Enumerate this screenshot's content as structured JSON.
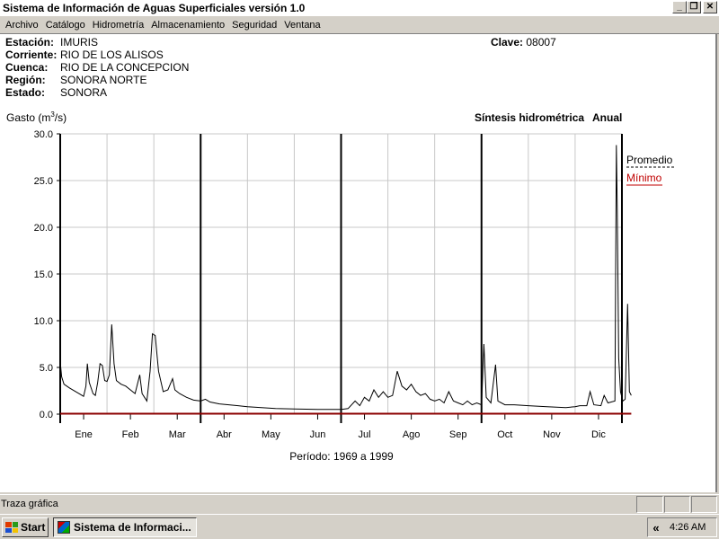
{
  "window": {
    "title": "Sistema de Información de Aguas Superficiales  versión 1.0"
  },
  "menu": [
    "Archivo",
    "Catálogo",
    "Hidrometría",
    "Almacenamiento",
    "Seguridad",
    "Ventana"
  ],
  "station": {
    "rows": [
      {
        "label": "Estación:",
        "value": "IMURIS"
      },
      {
        "label": "Corriente:",
        "value": "RIO DE LOS ALISOS"
      },
      {
        "label": "Cuenca:",
        "value": "RIO DE LA CONCEPCION"
      },
      {
        "label": "Región:",
        "value": "SONORA NORTE"
      },
      {
        "label": "Estado:",
        "value": "SONORA"
      }
    ],
    "clave_label": "Clave:",
    "clave_value": "08007"
  },
  "chart_data": {
    "type": "line",
    "title": "Síntesis hidrométrica",
    "subtitle": "Anual",
    "ylabel_prefix": "Gasto (m",
    "ylabel_sup": "3",
    "ylabel_suffix": "/s)",
    "ylim": [
      0,
      30
    ],
    "yticks": [
      "0.0",
      "5.0",
      "10.0",
      "15.0",
      "20.0",
      "25.0",
      "30.0"
    ],
    "categories": [
      "Ene",
      "Feb",
      "Mar",
      "Abr",
      "May",
      "Jun",
      "Jul",
      "Ago",
      "Sep",
      "Oct",
      "Nov",
      "Dic"
    ],
    "grid": true,
    "legend_position": "right",
    "period": "Período:  1969 a 1999",
    "series": [
      {
        "name": "Promedio",
        "style": "dashed",
        "color": "#000000",
        "points": [
          [
            0.0,
            5.6
          ],
          [
            0.03,
            4.0
          ],
          [
            0.08,
            3.2
          ],
          [
            0.2,
            2.8
          ],
          [
            0.4,
            2.2
          ],
          [
            0.5,
            1.9
          ],
          [
            0.55,
            3.0
          ],
          [
            0.58,
            5.4
          ],
          [
            0.62,
            3.4
          ],
          [
            0.7,
            2.2
          ],
          [
            0.75,
            2.0
          ],
          [
            0.8,
            3.4
          ],
          [
            0.85,
            5.4
          ],
          [
            0.9,
            5.2
          ],
          [
            0.95,
            3.6
          ],
          [
            1.0,
            3.5
          ],
          [
            1.05,
            4.2
          ],
          [
            1.1,
            9.6
          ],
          [
            1.15,
            5.4
          ],
          [
            1.2,
            3.6
          ],
          [
            1.3,
            3.2
          ],
          [
            1.4,
            3.0
          ],
          [
            1.5,
            2.6
          ],
          [
            1.6,
            2.2
          ],
          [
            1.7,
            4.2
          ],
          [
            1.75,
            2.2
          ],
          [
            1.8,
            1.8
          ],
          [
            1.85,
            1.4
          ],
          [
            1.92,
            4.6
          ],
          [
            1.97,
            8.6
          ],
          [
            2.03,
            8.4
          ],
          [
            2.1,
            4.6
          ],
          [
            2.2,
            2.4
          ],
          [
            2.3,
            2.6
          ],
          [
            2.4,
            3.8
          ],
          [
            2.45,
            2.6
          ],
          [
            2.55,
            2.2
          ],
          [
            2.7,
            1.8
          ],
          [
            2.85,
            1.5
          ],
          [
            3.0,
            1.4
          ],
          [
            3.1,
            1.6
          ],
          [
            3.2,
            1.3
          ],
          [
            3.4,
            1.1
          ],
          [
            3.6,
            1.0
          ],
          [
            3.8,
            0.9
          ],
          [
            4.0,
            0.8
          ],
          [
            4.3,
            0.7
          ],
          [
            4.6,
            0.6
          ],
          [
            5.0,
            0.55
          ],
          [
            5.5,
            0.5
          ],
          [
            6.0,
            0.5
          ],
          [
            6.15,
            0.6
          ],
          [
            6.3,
            1.4
          ],
          [
            6.4,
            0.9
          ],
          [
            6.5,
            1.8
          ],
          [
            6.6,
            1.4
          ],
          [
            6.7,
            2.6
          ],
          [
            6.8,
            1.8
          ],
          [
            6.9,
            2.4
          ],
          [
            7.0,
            1.8
          ],
          [
            7.1,
            2.0
          ],
          [
            7.2,
            4.6
          ],
          [
            7.3,
            3.0
          ],
          [
            7.4,
            2.6
          ],
          [
            7.5,
            3.2
          ],
          [
            7.6,
            2.4
          ],
          [
            7.7,
            2.0
          ],
          [
            7.8,
            2.2
          ],
          [
            7.9,
            1.6
          ],
          [
            8.0,
            1.4
          ],
          [
            8.1,
            1.6
          ],
          [
            8.2,
            1.2
          ],
          [
            8.3,
            2.4
          ],
          [
            8.4,
            1.4
          ],
          [
            8.5,
            1.2
          ],
          [
            8.6,
            1.0
          ],
          [
            8.7,
            1.4
          ],
          [
            8.8,
            1.0
          ],
          [
            8.9,
            1.2
          ],
          [
            9.0,
            1.0
          ],
          [
            9.05,
            7.5
          ],
          [
            9.1,
            1.8
          ],
          [
            9.2,
            1.2
          ],
          [
            9.3,
            5.3
          ],
          [
            9.35,
            1.4
          ],
          [
            9.5,
            1.0
          ],
          [
            9.7,
            1.0
          ],
          [
            10.0,
            0.9
          ],
          [
            10.4,
            0.8
          ],
          [
            10.8,
            0.7
          ],
          [
            11.0,
            0.8
          ],
          [
            11.1,
            0.9
          ],
          [
            11.25,
            0.9
          ],
          [
            11.32,
            2.4
          ],
          [
            11.4,
            1.0
          ],
          [
            11.55,
            0.9
          ],
          [
            11.62,
            2.0
          ],
          [
            11.7,
            1.2
          ],
          [
            11.85,
            1.4
          ],
          [
            11.88,
            28.8
          ],
          [
            11.9,
            22.0
          ],
          [
            11.93,
            6.0
          ],
          [
            11.97,
            2.4
          ],
          [
            12.02,
            1.4
          ],
          [
            12.07,
            1.6
          ],
          [
            12.12,
            11.8
          ],
          [
            12.16,
            2.4
          ],
          [
            12.2,
            2.0
          ]
        ]
      },
      {
        "name": "Mínimo",
        "style": "solid",
        "color": "#8b0000",
        "points": [
          [
            0,
            0.05
          ],
          [
            12.2,
            0.05
          ]
        ]
      }
    ]
  },
  "status": {
    "text": "Traza gráfica"
  },
  "taskbar": {
    "start": "Start",
    "task": "Sistema de Informaci...",
    "tray_chevron": "«",
    "clock": "4:26 AM"
  }
}
